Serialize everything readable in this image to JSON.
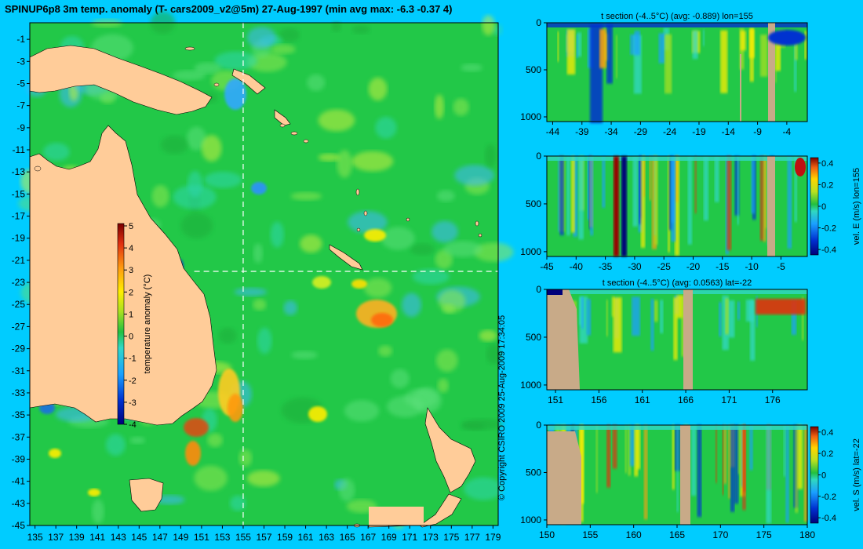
{
  "main_title": "SPINUP6p8 3m temp. anomaly (T- cars2009_v2@5m) 27-Aug-1997 (min avg max: -6.3 -0.37 4)",
  "copyright": "© Copyright CSIRO 2009   25-Aug-2009 17:34:05",
  "map": {
    "lon_ticks": [
      135,
      137,
      139,
      141,
      143,
      145,
      147,
      149,
      151,
      153,
      155,
      157,
      159,
      161,
      163,
      165,
      167,
      169,
      171,
      173,
      175,
      177,
      179
    ],
    "lat_ticks": [
      -1,
      -3,
      -5,
      -7,
      -9,
      -11,
      -13,
      -15,
      -17,
      -19,
      -21,
      -23,
      -25,
      -27,
      -29,
      -31,
      -33,
      -35,
      -37,
      -39,
      -41,
      -43,
      -45
    ],
    "lon_range": [
      134.5,
      179.5
    ],
    "lat_range": [
      -45,
      0.5
    ],
    "section_lon": 155,
    "section_lat": -22,
    "colorbar": {
      "label": "temperature anomaly (°C)",
      "ticks": [
        "5",
        "4",
        "3",
        "2",
        "1",
        "0",
        "-1",
        "-2",
        "-3",
        "-4"
      ],
      "range": [
        -4,
        5
      ]
    }
  },
  "panels": [
    {
      "title": "t section (-4..5°C) (avg: -0.889) lon=155",
      "x_ticks": [
        "-44",
        "-39",
        "-34",
        "-29",
        "-24",
        "-19",
        "-14",
        "-9",
        "-4"
      ],
      "x_values": [
        -44,
        -39,
        -34,
        -29,
        -24,
        -19,
        -14,
        -9,
        -4
      ],
      "x_range": [
        -45,
        -0.5
      ],
      "y_ticks": [
        "0",
        "500",
        "1000"
      ],
      "y_range": [
        0,
        1050
      ],
      "colorbar": null
    },
    {
      "title": "",
      "x_ticks": [
        "-45",
        "-40",
        "-35",
        "-30",
        "-25",
        "-20",
        "-15",
        "-10",
        "-5"
      ],
      "x_values": [
        -45,
        -40,
        -35,
        -30,
        -25,
        -20,
        -15,
        -10,
        -5
      ],
      "x_range": [
        -45,
        -0.5
      ],
      "y_ticks": [
        "0",
        "500",
        "1000"
      ],
      "y_range": [
        0,
        1050
      ],
      "colorbar": {
        "label": "vel. E (m/s) lon=155",
        "ticks": [
          "0.4",
          "0.2",
          "0",
          "-0.2",
          "-0.4"
        ]
      }
    },
    {
      "title": "t section (-4..5°C) (avg: 0.0563) lat=-22",
      "x_ticks": [
        "151",
        "156",
        "161",
        "166",
        "171",
        "176"
      ],
      "x_values": [
        151,
        156,
        161,
        166,
        171,
        176
      ],
      "x_range": [
        150,
        180
      ],
      "y_ticks": [
        "0",
        "500",
        "1000"
      ],
      "y_range": [
        0,
        1050
      ],
      "colorbar": null
    },
    {
      "title": "",
      "x_ticks": [
        "150",
        "155",
        "160",
        "165",
        "170",
        "175",
        "180"
      ],
      "x_values": [
        150,
        155,
        160,
        165,
        170,
        175,
        180
      ],
      "x_range": [
        150,
        180
      ],
      "y_ticks": [
        "0",
        "500",
        "1000"
      ],
      "y_range": [
        0,
        1050
      ],
      "colorbar": {
        "label": "vel. S (m/s) lat=-22",
        "ticks": [
          "0.4",
          "0.2",
          "0",
          "-0.2",
          "-0.4"
        ]
      }
    }
  ],
  "chart_data": {
    "type": "heatmap",
    "title": "SPINUP6p8 3m temp. anomaly (T- cars2009_v2@5m) 27-Aug-1997 (min avg max: -6.3 -0.37 4)",
    "stats": {
      "min": -6.3,
      "avg": -0.37,
      "max": 4
    },
    "map_extent": {
      "lon": [
        134.5,
        179.5
      ],
      "lat": [
        -45,
        0.5
      ]
    },
    "sections": [
      {
        "name": "t section lon=155",
        "avg": -0.889,
        "range": [
          -4,
          5
        ]
      },
      {
        "name": "vel. E lon=155",
        "range": [
          -0.4,
          0.4
        ]
      },
      {
        "name": "t section lat=-22",
        "avg": 0.0563,
        "range": [
          -4,
          5
        ]
      },
      {
        "name": "vel. S lat=-22",
        "range": [
          -0.4,
          0.4
        ]
      }
    ],
    "colors": {
      "background": "#00ccff",
      "land": "#ffcc99",
      "section_land": "#c8aa88"
    }
  }
}
